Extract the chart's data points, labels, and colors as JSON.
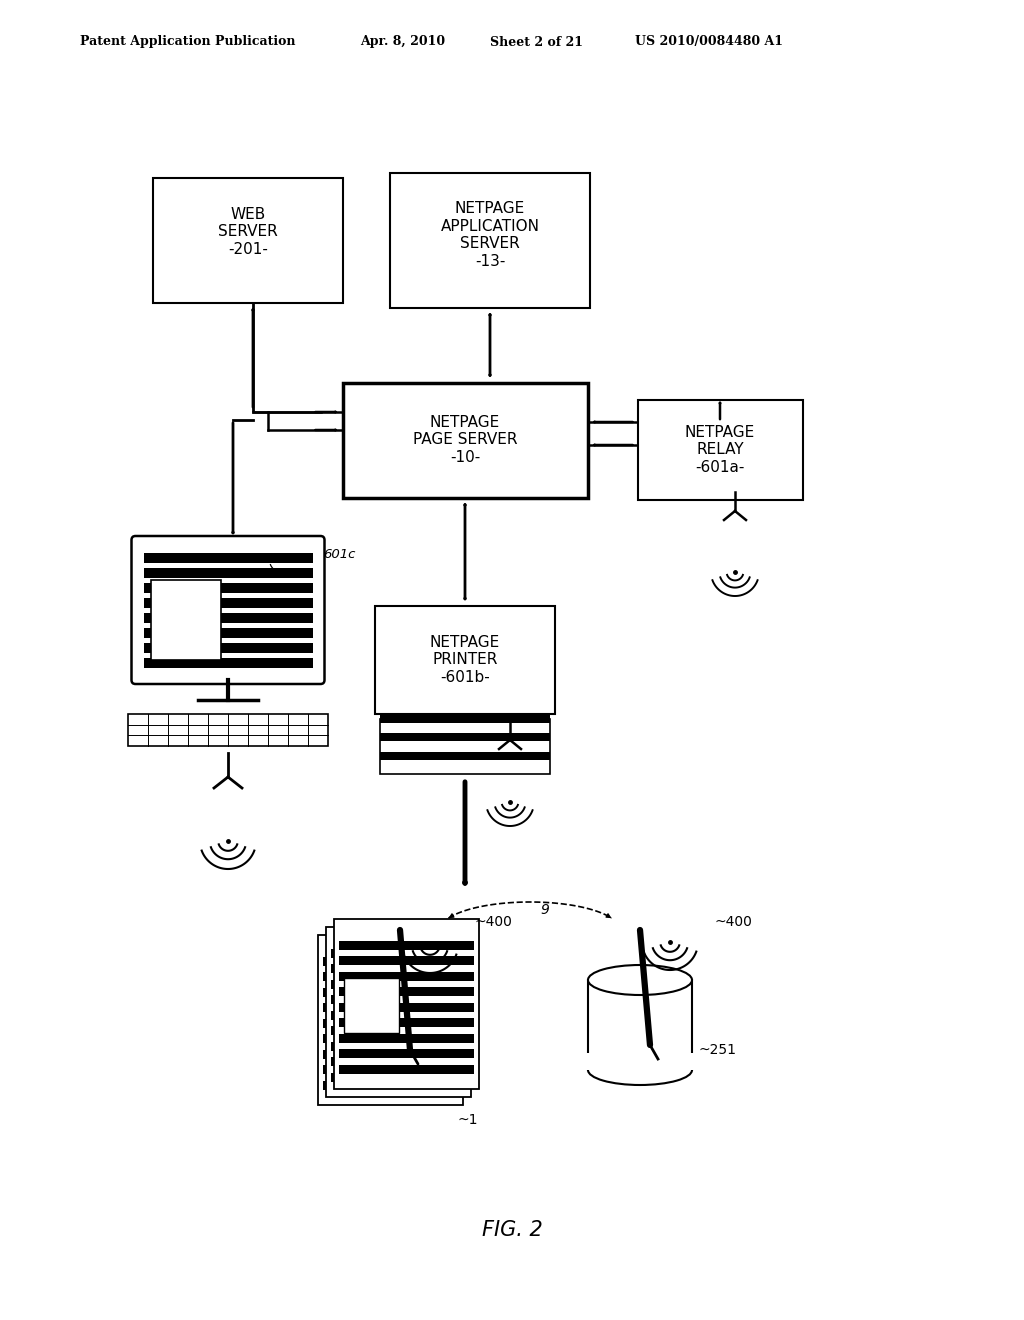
{
  "bg_color": "#ffffff",
  "header_left": "Patent Application Publication",
  "header_date": "Apr. 8, 2010",
  "header_sheet": "Sheet 2 of 21",
  "header_patent": "US 2010/0084480 A1",
  "fig_label": "FIG. 2",
  "web_server_label": "WEB\nSERVER\n-201-",
  "nas_label": "NETPAGE\nAPPLICATION\nSERVER\n-13-",
  "ps_label": "NETPAGE\nPAGE SERVER\n-10-",
  "relay_label": "NETPAGE\nRELAY\n-601a-",
  "printer_label": "NETPAGE\nPRINTER\n-601b-",
  "label_601c": "601c",
  "label_1": "~1",
  "label_400a": "~400",
  "label_400b": "~400",
  "label_251": "~251",
  "label_9": "9"
}
